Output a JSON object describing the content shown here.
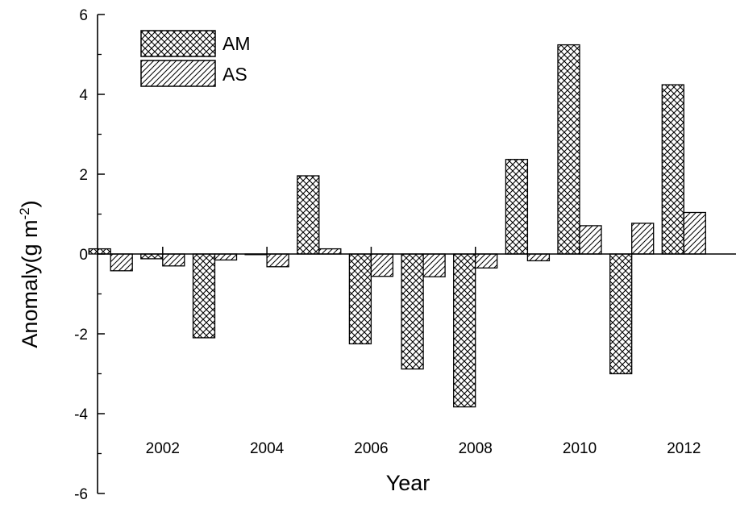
{
  "chart_data": {
    "type": "bar",
    "title": "",
    "xlabel": "Year",
    "ylabel": "Anomaly(g m",
    "ylabel_sup": "-2",
    "ylabel_close": ")",
    "x": [
      2001,
      2002,
      2003,
      2004,
      2005,
      2006,
      2007,
      2008,
      2009,
      2010,
      2011,
      2012
    ],
    "xticks": [
      "2002",
      "2004",
      "2006",
      "2008",
      "2010",
      "2012"
    ],
    "yticks": [
      "-6",
      "-4",
      "-2",
      "0",
      "2",
      "4",
      "6"
    ],
    "ylim": [
      -6,
      6
    ],
    "xlim": [
      2000.75,
      2013.0
    ],
    "grid": false,
    "legend_position": "top-left",
    "series": [
      {
        "name": "AM",
        "pattern": "crosshatch",
        "values": [
          0.13,
          -0.12,
          -2.1,
          0.0,
          1.96,
          -2.25,
          -2.88,
          -3.83,
          2.37,
          5.24,
          -3.0,
          4.24
        ]
      },
      {
        "name": "AS",
        "pattern": "diagonal",
        "values": [
          -0.42,
          -0.3,
          -0.15,
          -0.32,
          0.13,
          -0.56,
          -0.57,
          -0.35,
          -0.17,
          0.71,
          0.77,
          1.04
        ]
      }
    ],
    "colors": {
      "fill": "#ffffff",
      "stroke": "#000000",
      "hatch": "#000000"
    }
  }
}
